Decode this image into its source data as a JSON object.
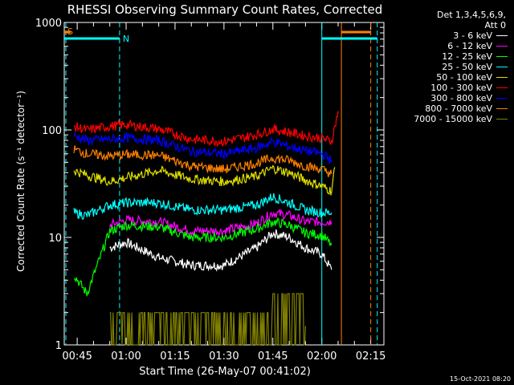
{
  "chart_data": {
    "type": "line",
    "title": "RHESSI Observing Summary Count Rates, Corrected",
    "xlabel": "Start Time (26-May-07 00:41:02)",
    "ylabel": "Corrected Count Rate (s⁻¹ detector⁻¹)",
    "y_scale": "log",
    "ylim": [
      1,
      1000
    ],
    "xlim_minutes_after_start": [
      0,
      98
    ],
    "x_tick_labels": [
      "00:45",
      "01:00",
      "01:15",
      "01:30",
      "01:45",
      "02:00",
      "02:15"
    ],
    "y_tick_labels": [
      "1",
      "10",
      "100",
      "1000"
    ],
    "legend_header": [
      "Det 1,3,4,5,6,9,",
      "Att 0"
    ],
    "legend_position": "top-right outside plot",
    "series": [
      {
        "name": "3 - 6 keV",
        "color": "#ffffff",
        "x": [
          "00:55",
          "01:00",
          "01:10",
          "01:20",
          "01:30",
          "01:40",
          "01:45",
          "01:50",
          "01:55",
          "02:00",
          "02:03"
        ],
        "y": [
          8,
          9,
          6.5,
          5.5,
          5.5,
          8,
          11,
          10,
          8,
          7,
          5
        ]
      },
      {
        "name": "6 - 12 keV",
        "color": "#ff00ff",
        "x": [
          "00:55",
          "01:00",
          "01:10",
          "01:20",
          "01:30",
          "01:40",
          "01:45",
          "01:50",
          "01:55",
          "02:00",
          "02:03"
        ],
        "y": [
          13,
          14.5,
          14,
          11.5,
          11.5,
          13.5,
          17,
          16,
          14,
          14,
          14
        ]
      },
      {
        "name": "12 - 25 keV",
        "color": "#00ff00",
        "x": [
          "00:44",
          "00:48",
          "00:55",
          "01:00",
          "01:10",
          "01:20",
          "01:30",
          "01:40",
          "01:45",
          "01:50",
          "01:55",
          "02:00",
          "02:03"
        ],
        "y": [
          4.5,
          3,
          11.5,
          13,
          12.5,
          10,
          10,
          12,
          14,
          13,
          11,
          10.5,
          8.5
        ]
      },
      {
        "name": "25 - 50 keV",
        "color": "#00ffff",
        "x": [
          "00:44",
          "00:48",
          "00:55",
          "01:00",
          "01:10",
          "01:20",
          "01:30",
          "01:40",
          "01:45",
          "01:50",
          "01:55",
          "02:00",
          "02:03"
        ],
        "y": [
          17,
          16,
          20,
          21,
          21,
          18,
          18,
          20,
          24,
          21,
          18,
          17,
          17
        ]
      },
      {
        "name": "50 - 100 keV",
        "color": "#dddd00",
        "x": [
          "00:44",
          "00:48",
          "00:55",
          "01:00",
          "01:10",
          "01:20",
          "01:30",
          "01:40",
          "01:45",
          "01:50",
          "01:55",
          "02:00",
          "02:03",
          "02:04"
        ],
        "y": [
          42,
          38,
          33,
          36,
          42,
          35,
          33,
          37,
          44,
          40,
          34,
          30,
          27,
          45
        ]
      },
      {
        "name": "100 - 300 keV",
        "color": "#ff0000",
        "x": [
          "00:44",
          "00:48",
          "00:55",
          "01:00",
          "01:10",
          "01:20",
          "01:30",
          "01:40",
          "01:45",
          "01:50",
          "01:55",
          "02:00",
          "02:03",
          "02:05"
        ],
        "y": [
          108,
          100,
          108,
          112,
          102,
          82,
          78,
          90,
          102,
          95,
          88,
          84,
          78,
          150
        ]
      },
      {
        "name": "300 - 800 keV",
        "color": "#0000ff",
        "x": [
          "00:44",
          "00:48",
          "00:55",
          "01:00",
          "01:10",
          "01:20",
          "01:30",
          "01:40",
          "01:45",
          "01:50",
          "01:55",
          "02:00",
          "02:03"
        ],
        "y": [
          88,
          80,
          82,
          84,
          80,
          63,
          60,
          68,
          78,
          70,
          64,
          60,
          52
        ]
      },
      {
        "name": "800 - 7000 keV",
        "color": "#ff8000",
        "x": [
          "00:44",
          "00:48",
          "00:55",
          "01:00",
          "01:10",
          "01:20",
          "01:30",
          "01:40",
          "01:45",
          "01:50",
          "01:55",
          "02:00",
          "02:03"
        ],
        "y": [
          66,
          60,
          57,
          59,
          58,
          46,
          43,
          49,
          55,
          52,
          46,
          43,
          39
        ]
      },
      {
        "name": "7000 - 15000 keV",
        "color": "#808000",
        "x": [
          "00:55",
          "01:00",
          "01:10",
          "01:20",
          "01:30",
          "01:40",
          "01:45",
          "01:50",
          "01:55"
        ],
        "y": [
          1.5,
          1.5,
          1.5,
          1,
          1,
          1.5,
          2.5,
          2.5,
          1.5
        ]
      }
    ],
    "flag_bars": [
      {
        "label": "S",
        "color": "#ff8000",
        "x_from": "00:41",
        "x_to": "00:43",
        "level": "top"
      },
      {
        "label": "",
        "color": "#00ffff",
        "x_from": "00:41",
        "x_to": "00:58",
        "level": "upper"
      },
      {
        "label": "N",
        "color": "#00ffff",
        "x_from": "00:58",
        "x_to": "00:58",
        "level": "upper"
      },
      {
        "label": "",
        "color": "#00ffff",
        "x_from": "02:00",
        "x_to": "02:17",
        "level": "upper"
      },
      {
        "label": "",
        "color": "#ff8000",
        "x_from": "02:06",
        "x_to": "02:15",
        "level": "top"
      }
    ],
    "vertical_markers": [
      {
        "x": "00:58",
        "color": "#00ffff",
        "style": "dashed"
      },
      {
        "x": "02:00",
        "color": "#00ffff",
        "style": "solid"
      },
      {
        "x": "02:06",
        "color": "#ff8000",
        "style": "solid"
      },
      {
        "x": "02:15",
        "color": "#ff8000",
        "style": "dashed"
      },
      {
        "x": "02:17",
        "color": "#00ffff",
        "style": "dashed"
      },
      {
        "x": "00:41",
        "color": "#00ffff",
        "style": "dashed"
      }
    ]
  },
  "timestamp": "15-Oct-2021 08:20"
}
